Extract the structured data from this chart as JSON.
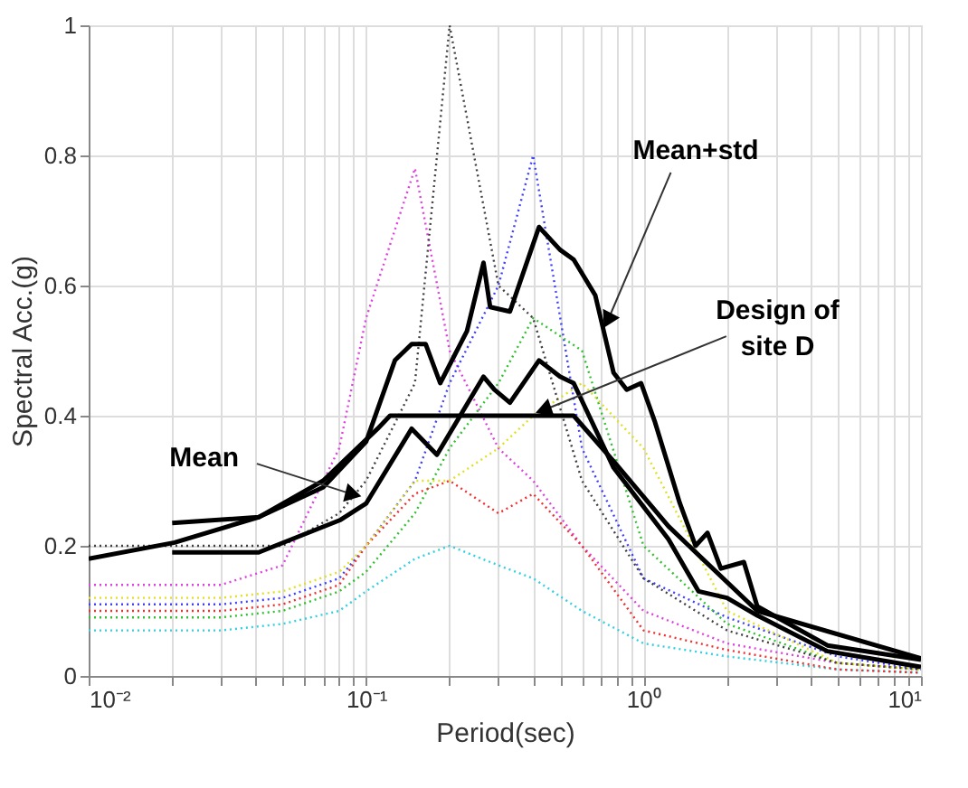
{
  "chart_data": {
    "type": "line",
    "xlabel": "Period(sec)",
    "ylabel": "Spectral Acc.(g)",
    "log": "x",
    "grid": true,
    "marker": "none",
    "xlim": [
      0.01,
      10
    ],
    "ylim": [
      0,
      1
    ],
    "xticks": [
      {
        "value": 0.01,
        "label": "10⁻²"
      },
      {
        "value": 0.02,
        "label": null
      },
      {
        "value": 0.03,
        "label": null
      },
      {
        "value": 0.04,
        "label": null
      },
      {
        "value": 0.05,
        "label": null
      },
      {
        "value": 0.06,
        "label": null
      },
      {
        "value": 0.07,
        "label": null
      },
      {
        "value": 0.08,
        "label": null
      },
      {
        "value": 0.09,
        "label": null
      },
      {
        "value": 0.1,
        "label": "10⁻¹"
      },
      {
        "value": 0.2,
        "label": null
      },
      {
        "value": 0.3,
        "label": null
      },
      {
        "value": 0.4,
        "label": null
      },
      {
        "value": 0.5,
        "label": null
      },
      {
        "value": 0.6,
        "label": null
      },
      {
        "value": 0.7,
        "label": null
      },
      {
        "value": 0.8,
        "label": null
      },
      {
        "value": 0.9,
        "label": null
      },
      {
        "value": 1,
        "label": "10⁰"
      },
      {
        "value": 2,
        "label": null
      },
      {
        "value": 3,
        "label": null
      },
      {
        "value": 4,
        "label": null
      },
      {
        "value": 5,
        "label": null
      },
      {
        "value": 6,
        "label": null
      },
      {
        "value": 7,
        "label": null
      },
      {
        "value": 8,
        "label": null
      },
      {
        "value": 9,
        "label": null
      },
      {
        "value": 10,
        "label": "10¹"
      }
    ],
    "yticks": [
      0,
      0.2,
      0.4,
      0.6,
      0.8,
      1
    ],
    "x": [
      0.01,
      0.03,
      0.05,
      0.08,
      0.1,
      0.15,
      0.2,
      0.3,
      0.4,
      0.6,
      1,
      2,
      5,
      10
    ],
    "series": [
      {
        "color": "#e040e0",
        "line_style": "dotted",
        "values": [
          0.14,
          0.14,
          0.17,
          0.35,
          0.55,
          0.78,
          0.5,
          0.35,
          0.3,
          0.2,
          0.1,
          0.05,
          0.02,
          0.01
        ]
      },
      {
        "color": "#4040ff",
        "line_style": "dotted",
        "values": [
          0.11,
          0.11,
          0.12,
          0.15,
          0.2,
          0.3,
          0.45,
          0.6,
          0.8,
          0.35,
          0.15,
          0.09,
          0.03,
          0.01
        ]
      },
      {
        "color": "#30c030",
        "line_style": "dotted",
        "values": [
          0.09,
          0.09,
          0.1,
          0.13,
          0.16,
          0.25,
          0.35,
          0.45,
          0.55,
          0.5,
          0.2,
          0.08,
          0.02,
          0.01
        ]
      },
      {
        "color": "#30d0e0",
        "line_style": "dotted",
        "values": [
          0.07,
          0.07,
          0.08,
          0.1,
          0.13,
          0.18,
          0.2,
          0.17,
          0.15,
          0.1,
          0.05,
          0.03,
          0.01,
          0.005
        ]
      },
      {
        "color": "#f03030",
        "line_style": "dotted",
        "values": [
          0.1,
          0.1,
          0.11,
          0.14,
          0.2,
          0.28,
          0.3,
          0.25,
          0.28,
          0.2,
          0.07,
          0.04,
          0.01,
          0.005
        ]
      },
      {
        "color": "#e0e020",
        "line_style": "dotted",
        "values": [
          0.12,
          0.12,
          0.13,
          0.16,
          0.2,
          0.3,
          0.3,
          0.35,
          0.4,
          0.45,
          0.35,
          0.1,
          0.02,
          0.01
        ]
      },
      {
        "color": "#404040",
        "line_style": "dotted",
        "values": [
          0.2,
          0.2,
          0.2,
          0.25,
          0.3,
          0.45,
          1.0,
          0.6,
          0.55,
          0.3,
          0.15,
          0.07,
          0.02,
          0.01
        ]
      },
      {
        "color": "#000000",
        "line_style": "solid",
        "x": [
          0.01,
          0.0204,
          0.041,
          0.07,
          0.11,
          0.122,
          0.56,
          0.78,
          1.23,
          2.57,
          10
        ],
        "values": [
          0.18,
          0.205,
          0.244,
          0.3,
          0.38,
          0.4,
          0.4,
          0.33,
          0.23,
          0.1,
          0.027
        ]
      },
      {
        "color": "#000000",
        "line_style": "solid",
        "x": [
          0.02,
          0.041,
          0.081,
          0.1,
          0.146,
          0.18,
          0.265,
          0.29,
          0.33,
          0.42,
          0.5,
          0.56,
          0.78,
          1.23,
          1.58,
          2.0,
          2.57,
          4.6,
          10
        ],
        "values": [
          0.19,
          0.19,
          0.24,
          0.265,
          0.38,
          0.34,
          0.46,
          0.44,
          0.42,
          0.485,
          0.46,
          0.45,
          0.32,
          0.21,
          0.13,
          0.12,
          0.093,
          0.038,
          0.014
        ]
      },
      {
        "color": "#000000",
        "line_style": "solid",
        "x": [
          0.02,
          0.041,
          0.07,
          0.1,
          0.127,
          0.146,
          0.164,
          0.185,
          0.231,
          0.265,
          0.28,
          0.33,
          0.42,
          0.5,
          0.56,
          0.67,
          0.78,
          0.87,
          0.98,
          1.1,
          1.35,
          1.54,
          1.7,
          1.9,
          2.3,
          2.57,
          4.6,
          10
        ],
        "values": [
          0.235,
          0.244,
          0.29,
          0.36,
          0.485,
          0.51,
          0.51,
          0.45,
          0.53,
          0.635,
          0.567,
          0.56,
          0.69,
          0.655,
          0.64,
          0.585,
          0.466,
          0.44,
          0.45,
          0.39,
          0.266,
          0.2,
          0.22,
          0.165,
          0.175,
          0.107,
          0.047,
          0.025
        ]
      }
    ],
    "annotations": [
      {
        "text": "Mean",
        "x": 0.088,
        "y": 0.28
      },
      {
        "text": "Mean+std",
        "x": 0.75,
        "y": 0.55
      },
      {
        "text": "Design of\nsite D",
        "x": 0.445,
        "y": 0.41
      }
    ]
  }
}
